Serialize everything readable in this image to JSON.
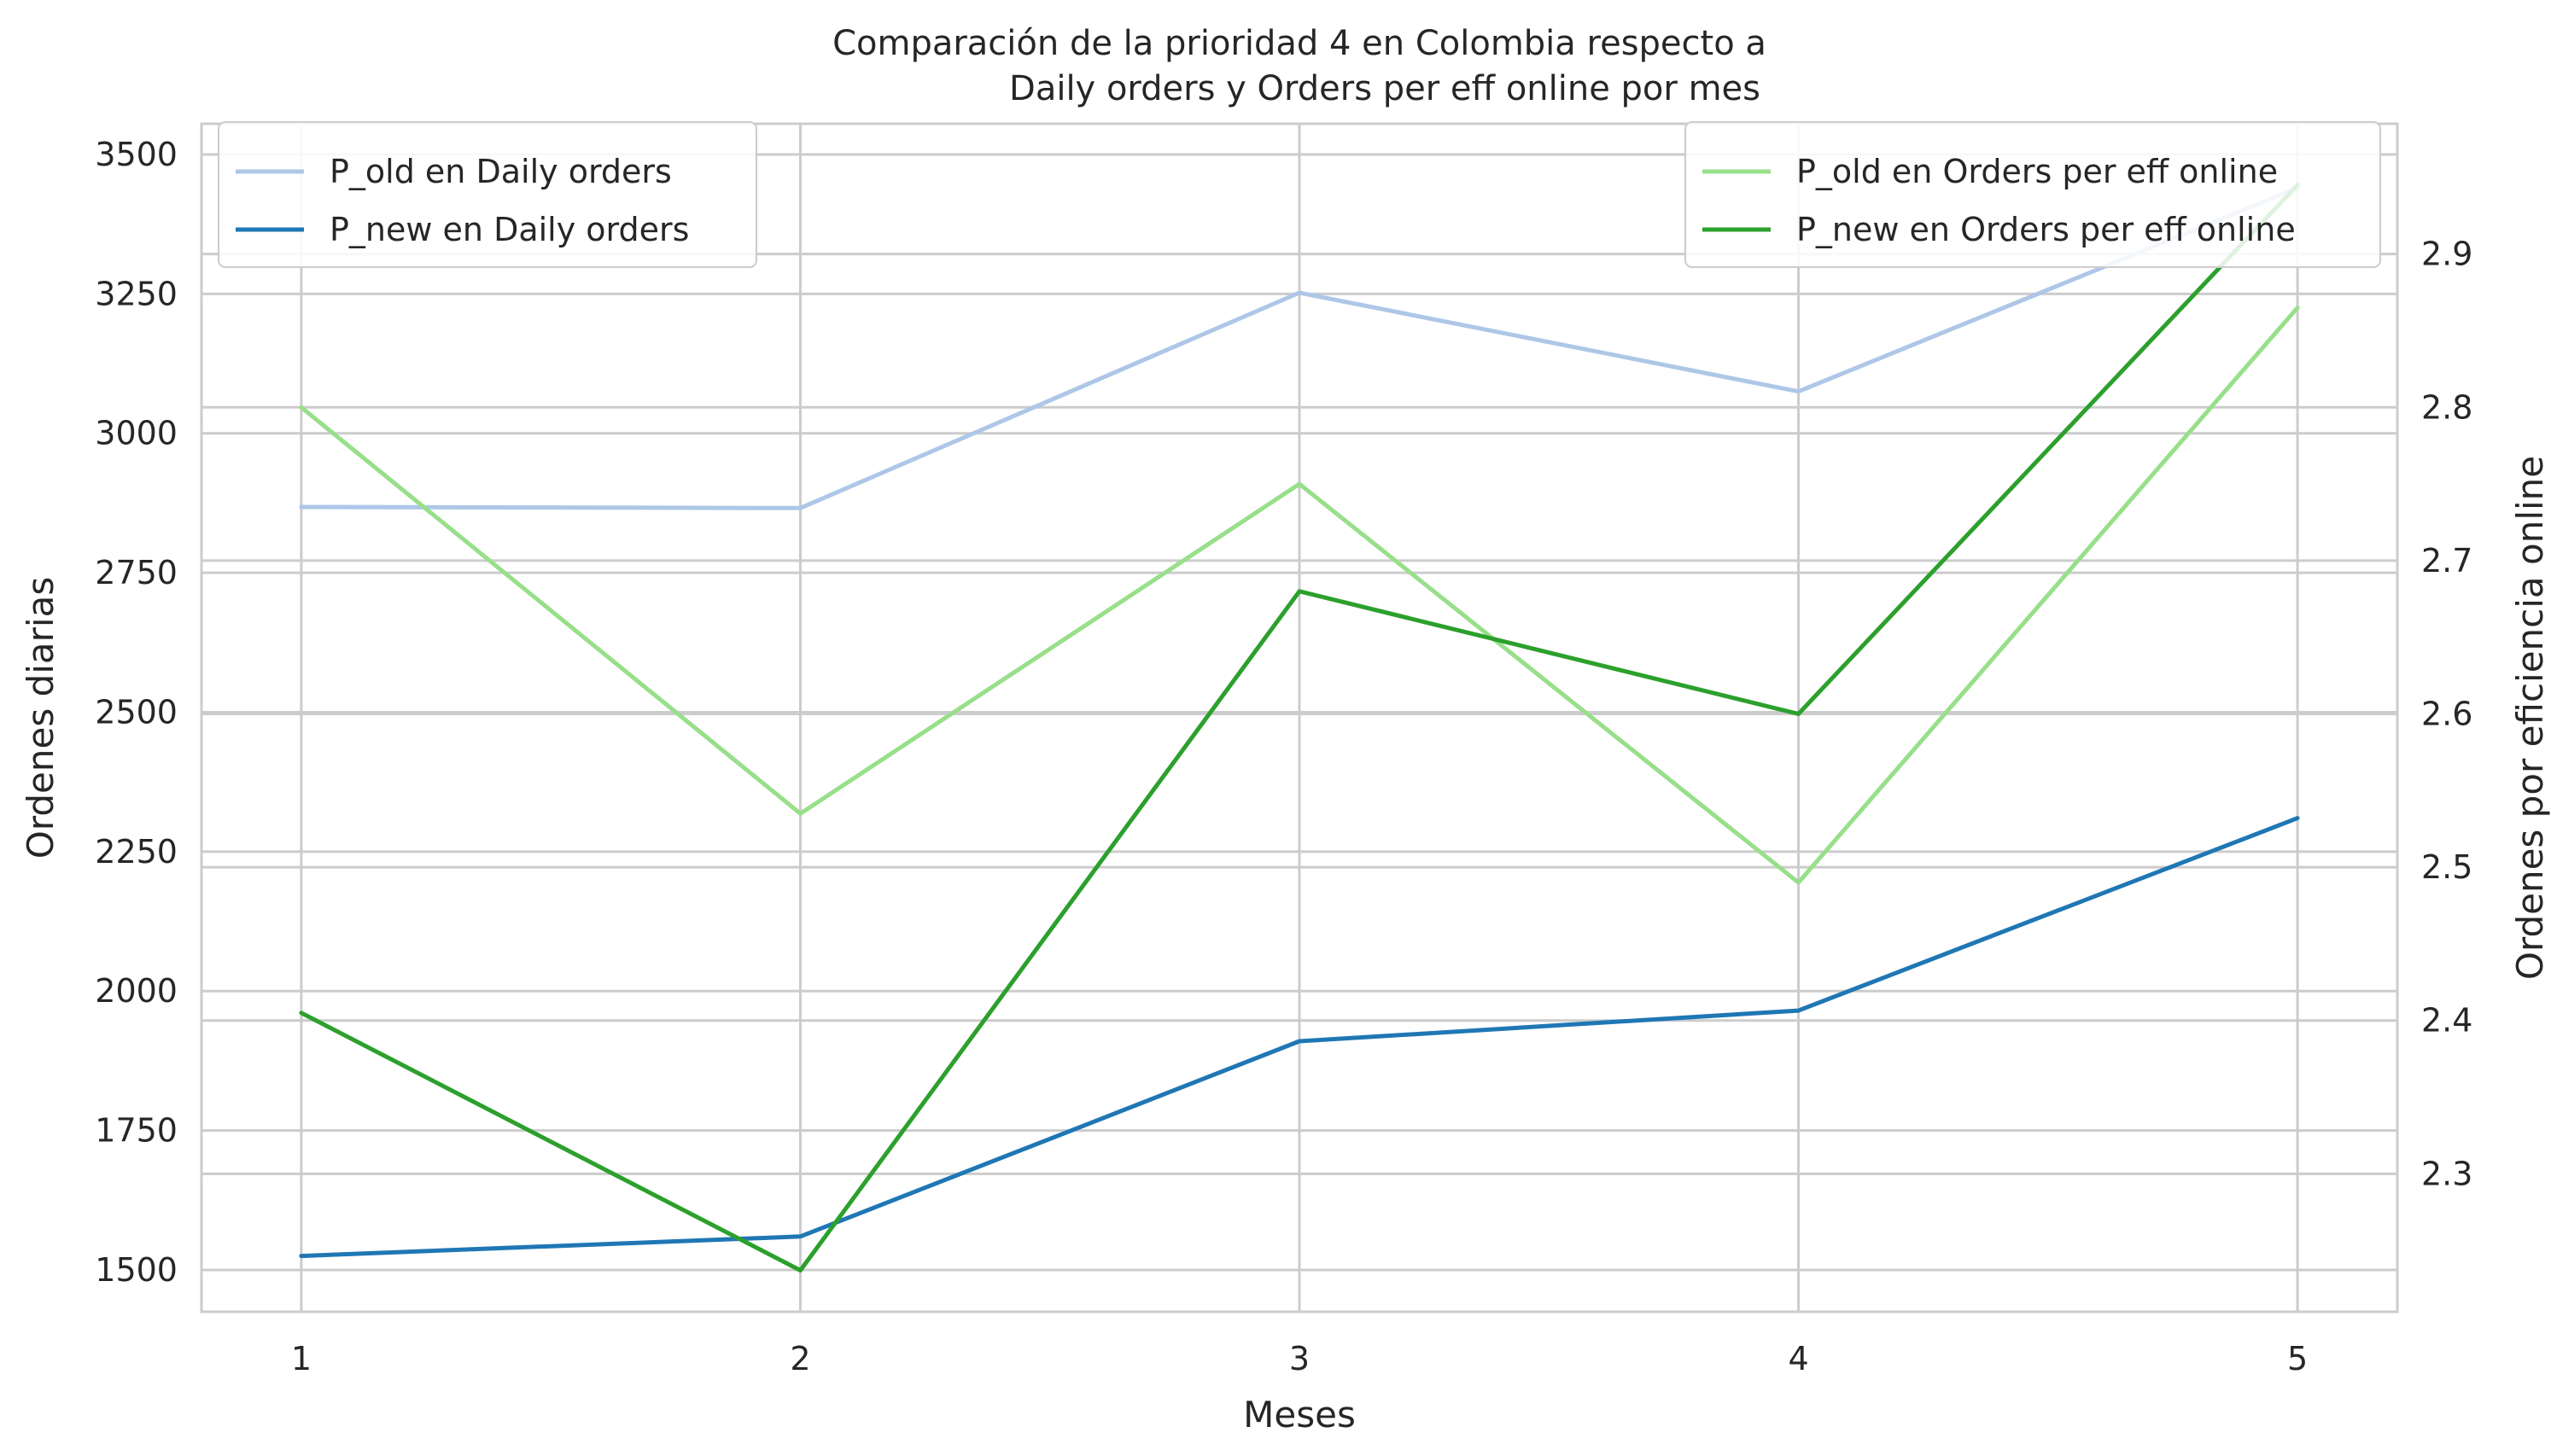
{
  "chart_data": {
    "type": "line",
    "title_line1": "Comparación de la prioridad 4 en Colombia respecto a",
    "title_line2": "Daily orders y Orders per eff online por mes",
    "xlabel": "Meses",
    "ylabel_left": "Ordenes diarias",
    "ylabel_right": "Ordenes por eficiencia online",
    "x": [
      1,
      2,
      3,
      4,
      5
    ],
    "x_ticks": [
      "1",
      "2",
      "3",
      "4",
      "5"
    ],
    "xlim": [
      0.8,
      5.2
    ],
    "left_axis": {
      "ylim": [
        1425,
        3555
      ],
      "ticks": [
        1500,
        1750,
        2000,
        2250,
        2500,
        2750,
        3000,
        3250,
        3500
      ],
      "tick_labels": [
        "1500",
        "1750",
        "2000",
        "2250",
        "2500",
        "2750",
        "3000",
        "3250",
        "3500"
      ]
    },
    "right_axis": {
      "ylim": [
        2.21,
        2.985
      ],
      "ticks": [
        2.3,
        2.4,
        2.5,
        2.6,
        2.7,
        2.8,
        2.9
      ],
      "tick_labels": [
        "2.3",
        "2.4",
        "2.5",
        "2.6",
        "2.7",
        "2.8",
        "2.9"
      ]
    },
    "grid": true,
    "series": [
      {
        "name": "P_old en Daily orders",
        "axis": "left",
        "color": "#aec7e8",
        "values": [
          2868,
          2866,
          3252,
          3075,
          3440
        ]
      },
      {
        "name": "P_new en Daily orders",
        "axis": "left",
        "color": "#1f77b4",
        "values": [
          1525,
          1560,
          1910,
          1965,
          2310
        ]
      },
      {
        "name": "P_old en Orders per eff online",
        "axis": "right",
        "color": "#98df8a",
        "values": [
          2.8,
          2.535,
          2.75,
          2.49,
          2.865
        ]
      },
      {
        "name": "P_new en Orders per eff online",
        "axis": "right",
        "color": "#2ca02c",
        "values": [
          2.405,
          2.237,
          2.68,
          2.6,
          2.945
        ]
      }
    ],
    "legend_left": {
      "placement": "upper-left",
      "entries": [
        "P_old en Daily orders",
        "P_new en Daily orders"
      ]
    },
    "legend_right": {
      "placement": "upper-right",
      "entries": [
        "P_old en Orders per eff online",
        "P_new en Orders per eff online"
      ]
    }
  }
}
